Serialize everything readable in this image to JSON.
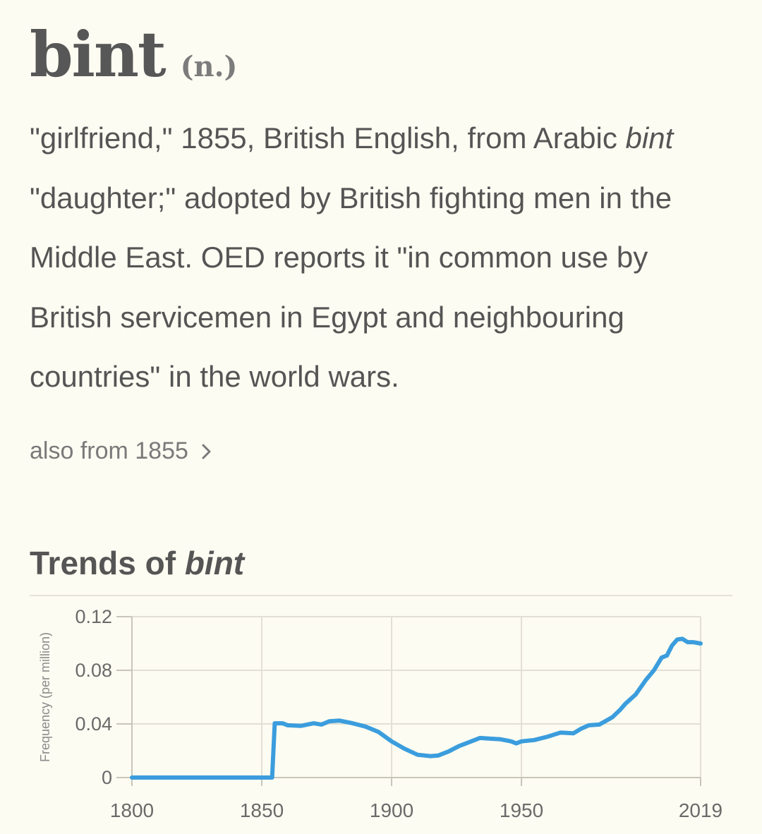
{
  "entry": {
    "headword": "bint",
    "part_of_speech": "(n.)",
    "definition": {
      "t1": "\"girlfriend,\" 1855, British English, from Arabic",
      "t2_italic": "bint",
      "t3": "\"daughter;\" adopted by British fighting men in the Middle East. OED reports it \"in common use by British servicemen in Egypt and neighbouring countries\" in the world wars."
    },
    "also_from": "also from 1855",
    "chevron_icon": "chevron-right-icon"
  },
  "trends": {
    "title_prefix": "Trends of",
    "title_word": "bint"
  },
  "colors": {
    "background": "#fdfcf2",
    "text": "#555555",
    "line": "#3b9ddd",
    "grid": "#e6e4d8"
  },
  "chart_data": {
    "type": "line",
    "ylabel": "Frequency (per million)",
    "xlabel": "",
    "x_ticks": [
      "1800",
      "1850",
      "1900",
      "1950",
      "2019"
    ],
    "y_ticks": [
      "0",
      "0.04",
      "0.08",
      "0.12"
    ],
    "xlim": [
      1800,
      2019
    ],
    "ylim": [
      0,
      0.12
    ],
    "grid": true,
    "legend": "none",
    "series": [
      {
        "points": [
          [
            1800,
            0
          ],
          [
            1853,
            0
          ],
          [
            1854,
            0
          ],
          [
            1855,
            0.0405
          ],
          [
            1858,
            0.0405
          ],
          [
            1860,
            0.039
          ],
          [
            1865,
            0.0385
          ],
          [
            1870,
            0.0405
          ],
          [
            1873,
            0.0395
          ],
          [
            1876,
            0.042
          ],
          [
            1880,
            0.0425
          ],
          [
            1885,
            0.0405
          ],
          [
            1890,
            0.038
          ],
          [
            1895,
            0.034
          ],
          [
            1900,
            0.027
          ],
          [
            1905,
            0.0215
          ],
          [
            1910,
            0.017
          ],
          [
            1915,
            0.016
          ],
          [
            1918,
            0.0165
          ],
          [
            1922,
            0.0195
          ],
          [
            1926,
            0.0235
          ],
          [
            1930,
            0.0265
          ],
          [
            1934,
            0.0295
          ],
          [
            1938,
            0.029
          ],
          [
            1942,
            0.0285
          ],
          [
            1946,
            0.027
          ],
          [
            1948,
            0.0255
          ],
          [
            1950,
            0.027
          ],
          [
            1955,
            0.028
          ],
          [
            1960,
            0.0305
          ],
          [
            1965,
            0.0335
          ],
          [
            1970,
            0.033
          ],
          [
            1973,
            0.0365
          ],
          [
            1976,
            0.039
          ],
          [
            1980,
            0.0395
          ],
          [
            1985,
            0.045
          ],
          [
            1988,
            0.0505
          ],
          [
            1990,
            0.055
          ],
          [
            1994,
            0.062
          ],
          [
            1998,
            0.073
          ],
          [
            2001,
            0.08
          ],
          [
            2004,
            0.0895
          ],
          [
            2006,
            0.091
          ],
          [
            2008,
            0.0985
          ],
          [
            2010,
            0.103
          ],
          [
            2012,
            0.1035
          ],
          [
            2014,
            0.101
          ],
          [
            2016,
            0.101
          ],
          [
            2019,
            0.1
          ]
        ]
      }
    ]
  }
}
